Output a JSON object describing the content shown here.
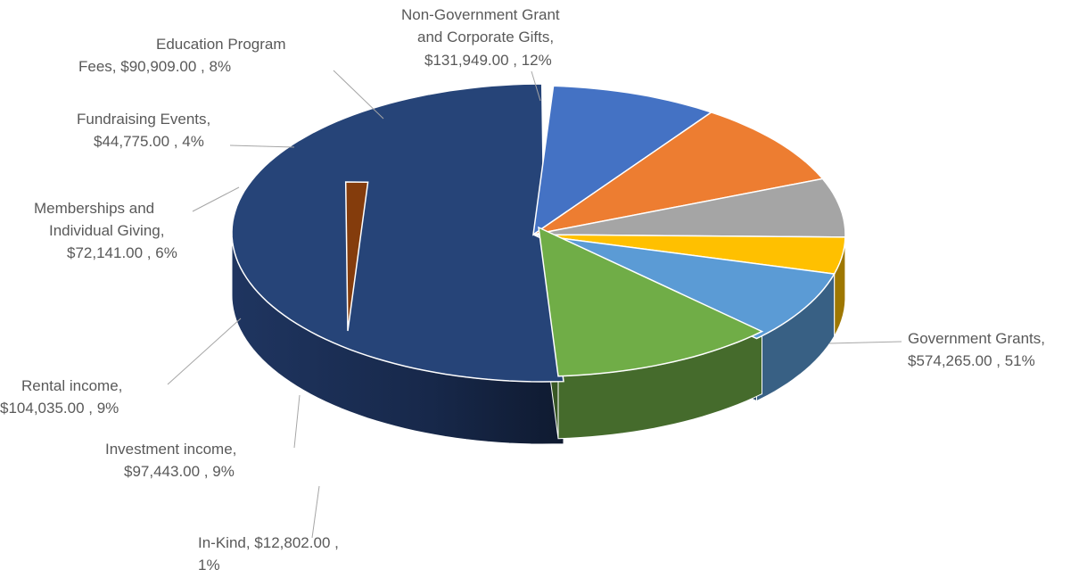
{
  "chart_data": {
    "type": "pie",
    "style": "3d-exploded",
    "title": "",
    "legend": "none",
    "slices": [
      {
        "name": "Government Grants",
        "value": 574265.0,
        "percent": 51,
        "color": "#264478",
        "label_lines": [
          "Government Grants,",
          "$574,265.00 , 51%"
        ]
      },
      {
        "name": "In-Kind",
        "value": 12802.0,
        "percent": 1,
        "color": "#843C0C",
        "label_lines": [
          "In-Kind,  $12,802.00 ,",
          "1%"
        ]
      },
      {
        "name": "Investment income",
        "value": 97443.0,
        "percent": 9,
        "color": "#4472C4",
        "label_lines": [
          "Investment income,",
          "$97,443.00 , 9%"
        ]
      },
      {
        "name": "Rental income",
        "value": 104035.0,
        "percent": 9,
        "color": "#ED7D31",
        "label_lines": [
          "Rental income,",
          "$104,035.00 , 9%"
        ]
      },
      {
        "name": "Memberships and Individual Giving",
        "value": 72141.0,
        "percent": 6,
        "color": "#A5A5A5",
        "label_lines": [
          "Memberships and",
          "Individual Giving,",
          "$72,141.00 , 6%"
        ]
      },
      {
        "name": "Fundraising Events",
        "value": 44775.0,
        "percent": 4,
        "color": "#FFC000",
        "label_lines": [
          "Fundraising Events,",
          "$44,775.00 , 4%"
        ]
      },
      {
        "name": "Education Program Fees",
        "value": 90909.0,
        "percent": 8,
        "color": "#5B9BD5",
        "label_lines": [
          "Education Program",
          "Fees,  $90,909.00 , 8%"
        ]
      },
      {
        "name": "Non-Government Grant and Corporate Gifts",
        "value": 131949.0,
        "percent": 12,
        "color": "#70AD47",
        "label_lines": [
          "Non-Government Grant",
          "and Corporate Gifts,",
          "$131,949.00 , 12%"
        ]
      }
    ]
  }
}
